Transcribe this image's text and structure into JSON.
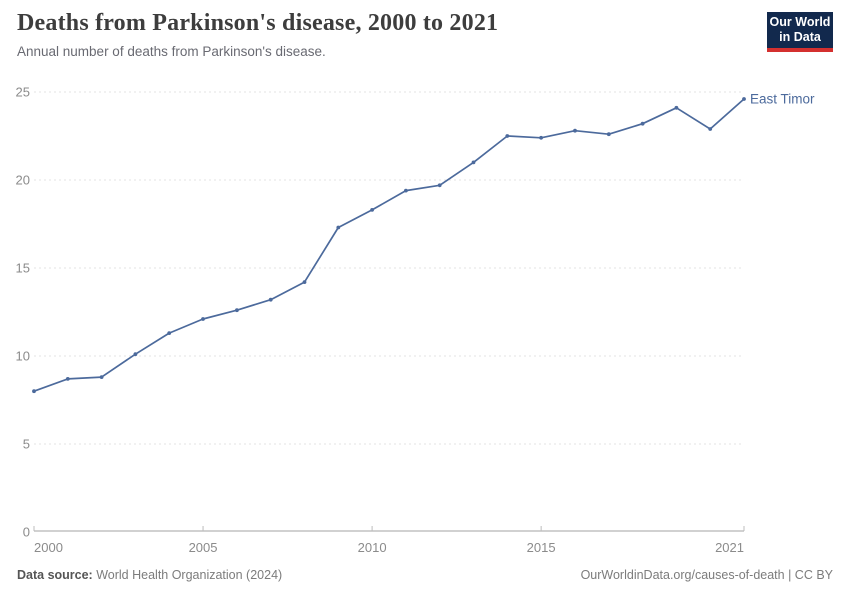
{
  "header": {
    "title": "Deaths from Parkinson's disease, 2000 to 2021",
    "subtitle": "Annual number of deaths from Parkinson's disease.",
    "logo_line1": "Our World",
    "logo_line2": "in Data"
  },
  "chart_data": {
    "type": "line",
    "title": "Deaths from Parkinson's disease, 2000 to 2021",
    "xlabel": "",
    "ylabel": "",
    "x": [
      2000,
      2001,
      2002,
      2003,
      2004,
      2005,
      2006,
      2007,
      2008,
      2009,
      2010,
      2011,
      2012,
      2013,
      2014,
      2015,
      2016,
      2017,
      2018,
      2019,
      2020,
      2021
    ],
    "series": [
      {
        "name": "East Timor",
        "values": [
          8.0,
          8.7,
          8.8,
          10.1,
          11.3,
          12.1,
          12.6,
          13.2,
          14.2,
          17.3,
          18.3,
          19.4,
          19.7,
          21.0,
          22.5,
          22.4,
          22.8,
          22.6,
          23.2,
          24.1,
          22.9,
          24.6
        ]
      }
    ],
    "xlim": [
      2000,
      2021
    ],
    "ylim": [
      0,
      25
    ],
    "x_ticks": [
      2000,
      2005,
      2010,
      2015,
      2021
    ],
    "y_ticks": [
      0,
      5,
      10,
      15,
      20,
      25
    ],
    "grid": "horizontal-dashed",
    "legend": "line-end-label",
    "colors": {
      "line": "#4c6a9c",
      "end_label": "#4c6a9c",
      "gridline": "#e3e3e3",
      "axis": "#a3a3a3",
      "tick_label": "#8b8b8b"
    }
  },
  "footer": {
    "source_label": "Data source:",
    "source_name": "World Health Organization (2024)",
    "credit": "OurWorldinData.org/causes-of-death | CC BY"
  }
}
